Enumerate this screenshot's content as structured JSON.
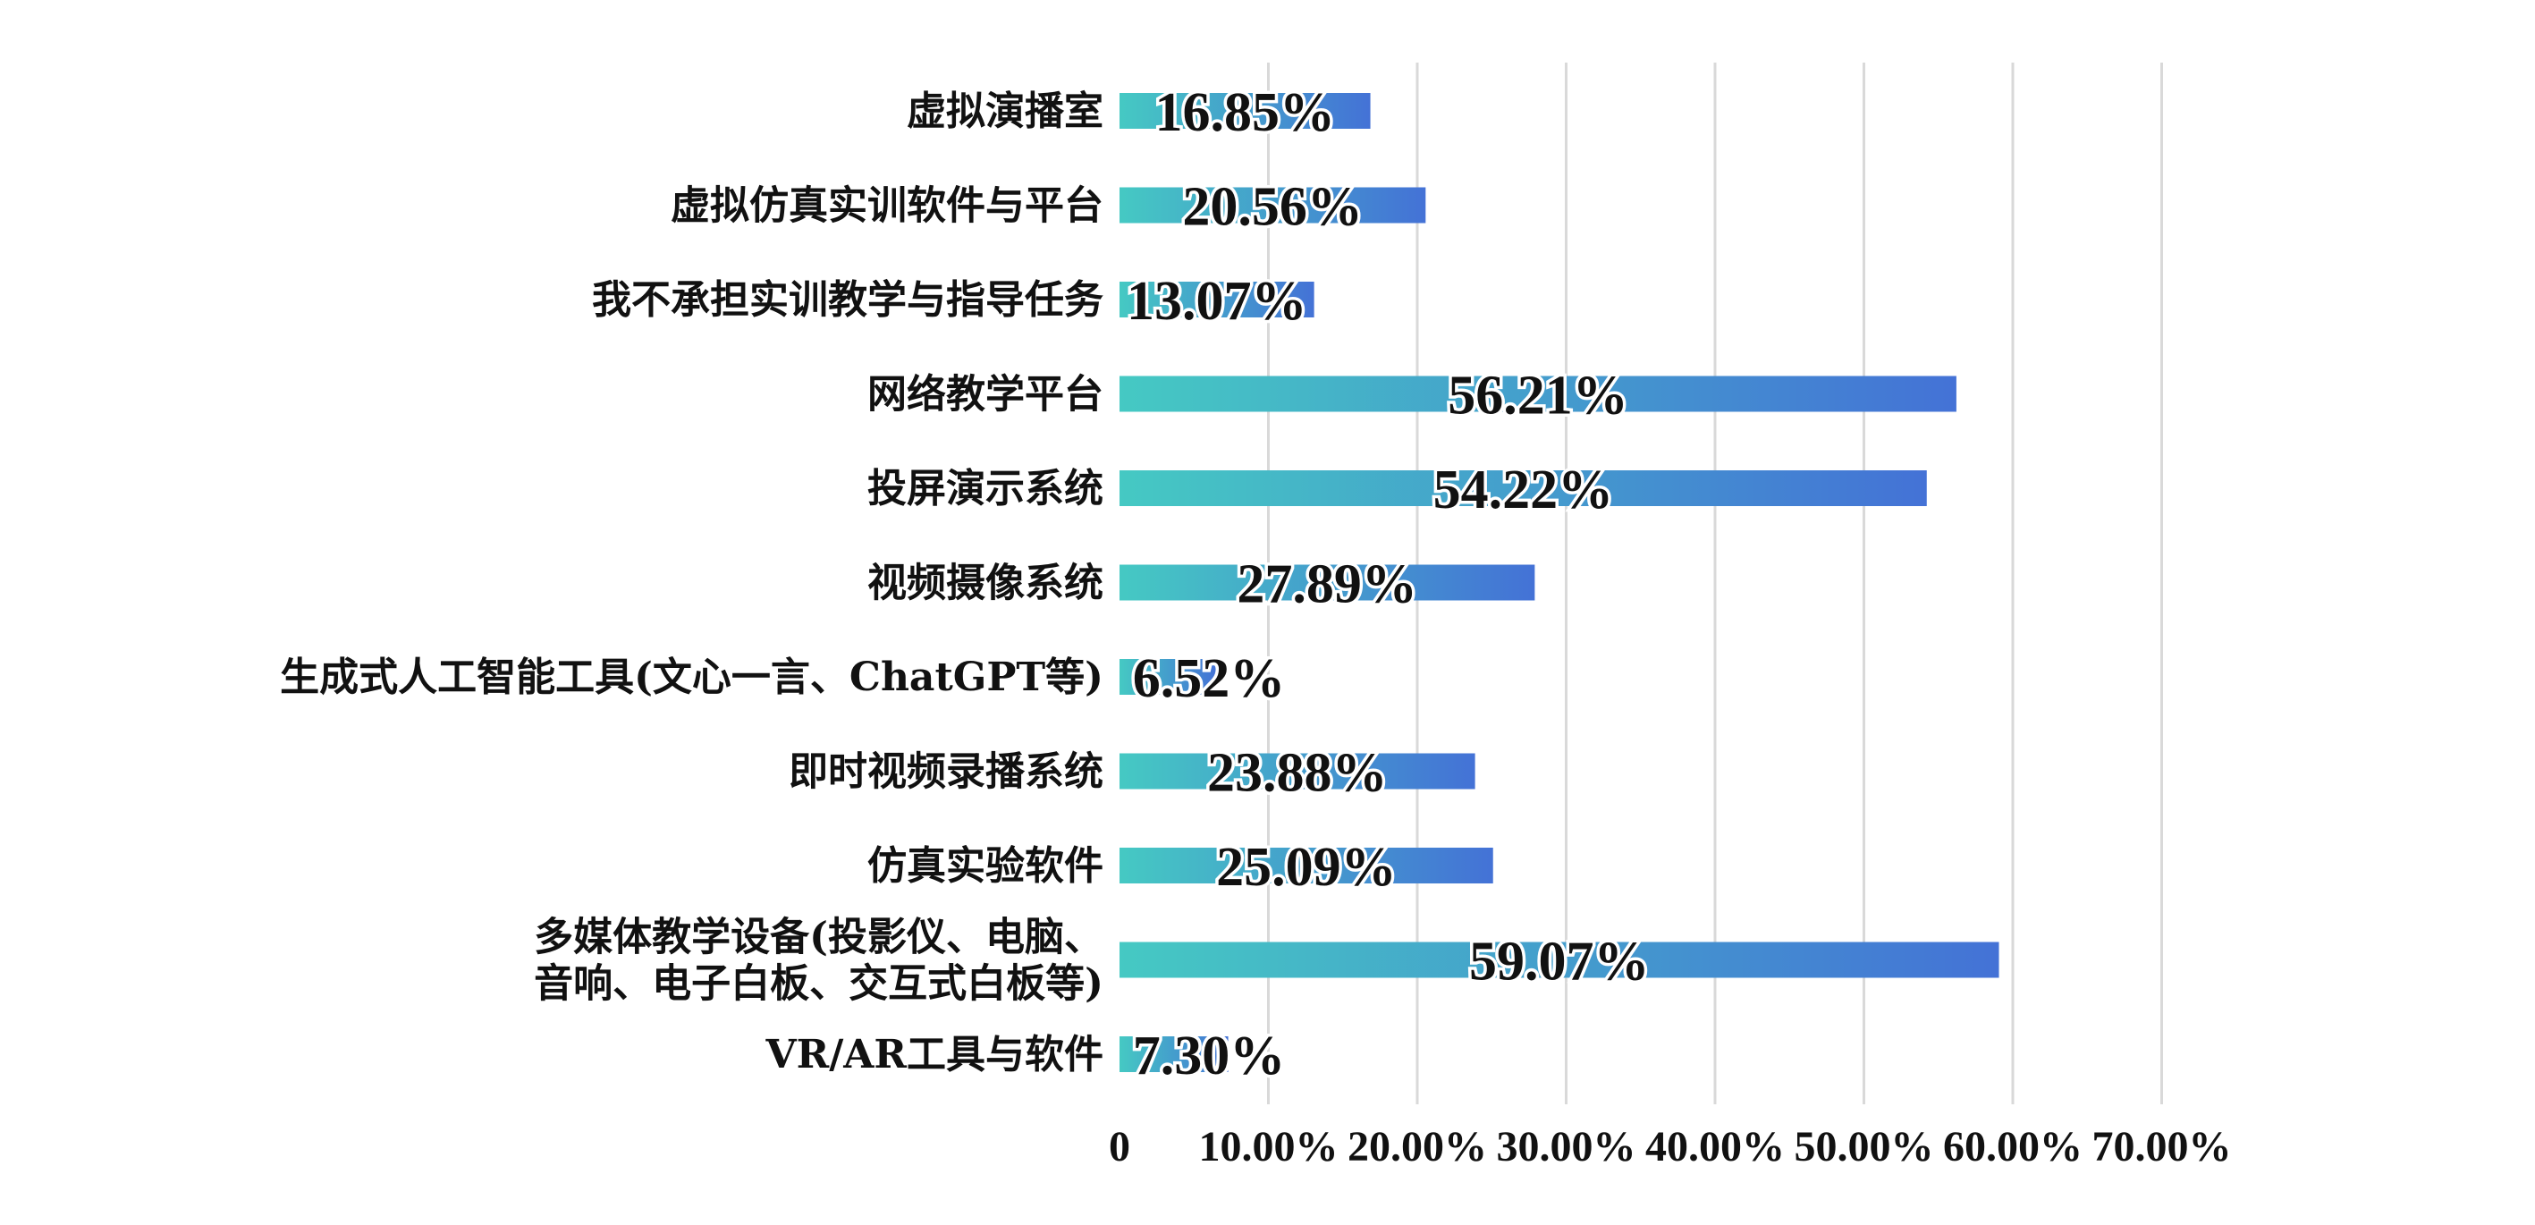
{
  "chart_data": {
    "type": "bar",
    "orientation": "horizontal",
    "categories": [
      "虚拟演播室",
      "虚拟仿真实训软件与平台",
      "我不承担实训教学与指导任务",
      "网络教学平台",
      "投屏演示系统",
      "视频摄像系统",
      "生成式人工智能工具(文心一言、ChatGPT等)",
      "即时视频录播系统",
      "仿真实验软件",
      "多媒体教学设备(投影仪、电脑、音响、电子白板、交互式白板等)",
      "VR/AR工具与软件"
    ],
    "category_lines": [
      [
        "虚拟演播室"
      ],
      [
        "虚拟仿真实训软件与平台"
      ],
      [
        "我不承担实训教学与指导任务"
      ],
      [
        "网络教学平台"
      ],
      [
        "投屏演示系统"
      ],
      [
        "视频摄像系统"
      ],
      [
        "生成式人工智能工具(文心一言、ChatGPT等)"
      ],
      [
        "即时视频录播系统"
      ],
      [
        "仿真实验软件"
      ],
      [
        "多媒体教学设备(投影仪、电脑、",
        "音响、电子白板、交互式白板等)"
      ],
      [
        "VR/AR工具与软件"
      ]
    ],
    "values": [
      16.85,
      20.56,
      13.07,
      56.21,
      54.22,
      27.89,
      6.52,
      23.88,
      25.09,
      59.07,
      7.3
    ],
    "data_labels": [
      "16.85%",
      "20.56%",
      "13.07%",
      "56.21%",
      "54.22%",
      "27.89%",
      "6.52%",
      "23.88%",
      "25.09%",
      "59.07%",
      "7.30%"
    ],
    "xlim": [
      0,
      70
    ],
    "x_ticks": [
      0,
      10,
      20,
      30,
      40,
      50,
      60,
      70
    ],
    "x_tick_labels": [
      "0",
      "10.00%",
      "20.00%",
      "30.00%",
      "40.00%",
      "50.00%",
      "60.00%",
      "70.00%"
    ],
    "grid": true,
    "legend": "none",
    "colors": {
      "bar_start": "#45c9c3",
      "bar_end": "#4472d6",
      "grid": "#d9d9d9",
      "text": "#111111"
    }
  }
}
